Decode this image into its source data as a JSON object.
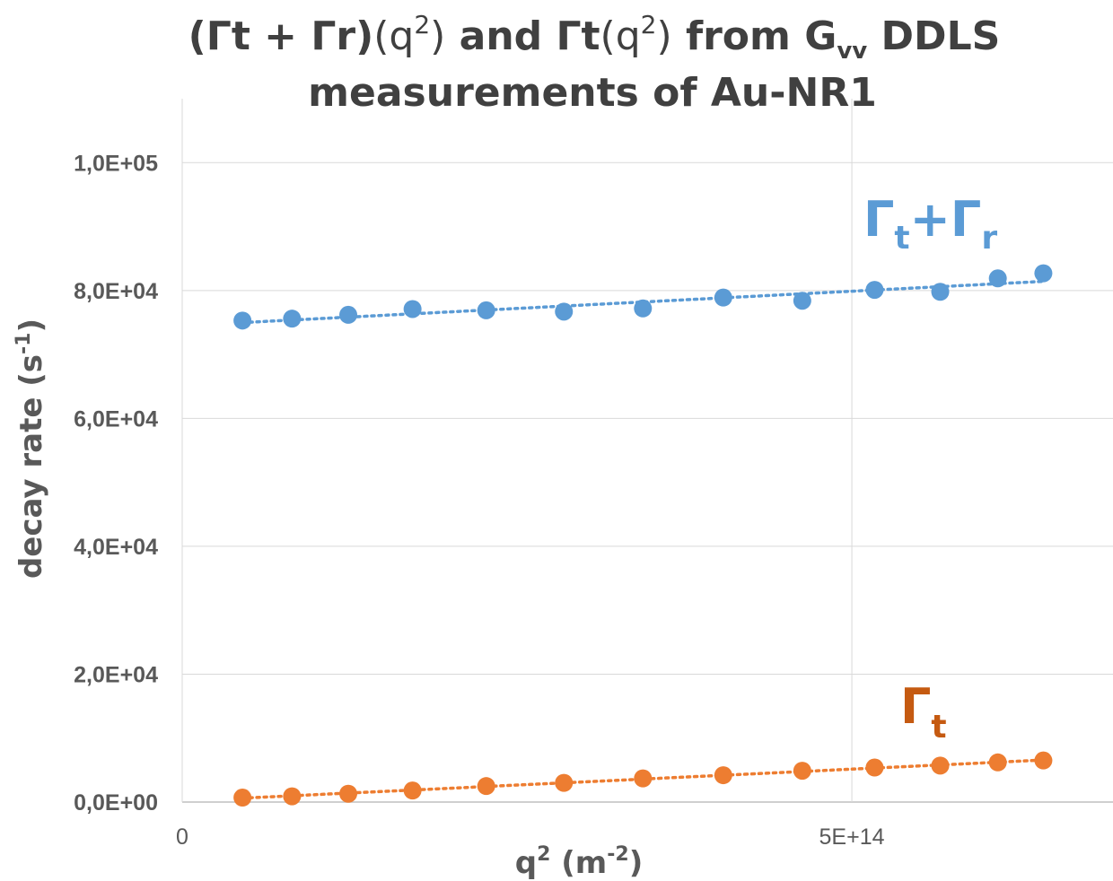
{
  "chart_data": {
    "type": "scatter",
    "title": {
      "line1": {
        "prefix": "(Γt + Γr)",
        "q": "(q",
        "sup": "2",
        "close": ")",
        "mid": " and Γt",
        "q2": "(q",
        "sup2": "2",
        "close2": ")",
        "tail": "  from G",
        "sub": "vv",
        "end": " DDLS"
      },
      "line2": "measurements of Au-NR1"
    },
    "xlabel": {
      "base": "q",
      "sup1": "2",
      "paren": " (m",
      "sup2": "-2",
      "close": ")"
    },
    "ylabel": {
      "base": "decay rate (s",
      "sup": "-1",
      "close": ")"
    },
    "xlim": [
      0,
      695000000000000.0
    ],
    "ylim": [
      0,
      110000
    ],
    "x_ticks": [
      {
        "value": 0,
        "label": "0"
      },
      {
        "value": 500000000000000.0,
        "label": "5E+14"
      }
    ],
    "y_ticks": [
      {
        "value": 0,
        "label": "0,0E+00"
      },
      {
        "value": 20000,
        "label": "2,0E+04"
      },
      {
        "value": 40000,
        "label": "4,0E+04"
      },
      {
        "value": 60000,
        "label": "6,0E+04"
      },
      {
        "value": 80000,
        "label": "8,0E+04"
      },
      {
        "value": 100000,
        "label": "1,0E+05"
      }
    ],
    "grid": {
      "horizontal": true,
      "vertical": true
    },
    "series": [
      {
        "color": "#5b9bd5",
        "trendline": "linear-dotted",
        "points": [
          [
            45000000000000.0,
            75300
          ],
          [
            82000000000000.0,
            75600
          ],
          [
            124000000000000.0,
            76200
          ],
          [
            172000000000000.0,
            77100
          ],
          [
            227000000000000.0,
            76900
          ],
          [
            285000000000000.0,
            76700
          ],
          [
            344000000000000.0,
            77200
          ],
          [
            404000000000000.0,
            78900
          ],
          [
            463000000000000.0,
            78400
          ],
          [
            517000000000000.0,
            80100
          ],
          [
            566000000000000.0,
            79800
          ],
          [
            609000000000000.0,
            81900
          ],
          [
            643000000000000.0,
            82700
          ]
        ]
      },
      {
        "color": "#ed7d31",
        "trendline": "linear-dotted",
        "points": [
          [
            45000000000000.0,
            700
          ],
          [
            82000000000000.0,
            900
          ],
          [
            124000000000000.0,
            1300
          ],
          [
            172000000000000.0,
            1800
          ],
          [
            227000000000000.0,
            2500
          ],
          [
            285000000000000.0,
            3000
          ],
          [
            344000000000000.0,
            3700
          ],
          [
            404000000000000.0,
            4200
          ],
          [
            463000000000000.0,
            4900
          ],
          [
            517000000000000.0,
            5400
          ],
          [
            566000000000000.0,
            5700
          ],
          [
            609000000000000.0,
            6200
          ],
          [
            643000000000000.0,
            6500
          ]
        ]
      }
    ],
    "annotations": [
      {
        "series": 0,
        "symbol": "Γ",
        "sub": "t",
        "plus": "+",
        "symbol2": "Γ",
        "sub2": "r"
      },
      {
        "series": 1,
        "symbol": "Γ",
        "sub": "t"
      }
    ]
  }
}
